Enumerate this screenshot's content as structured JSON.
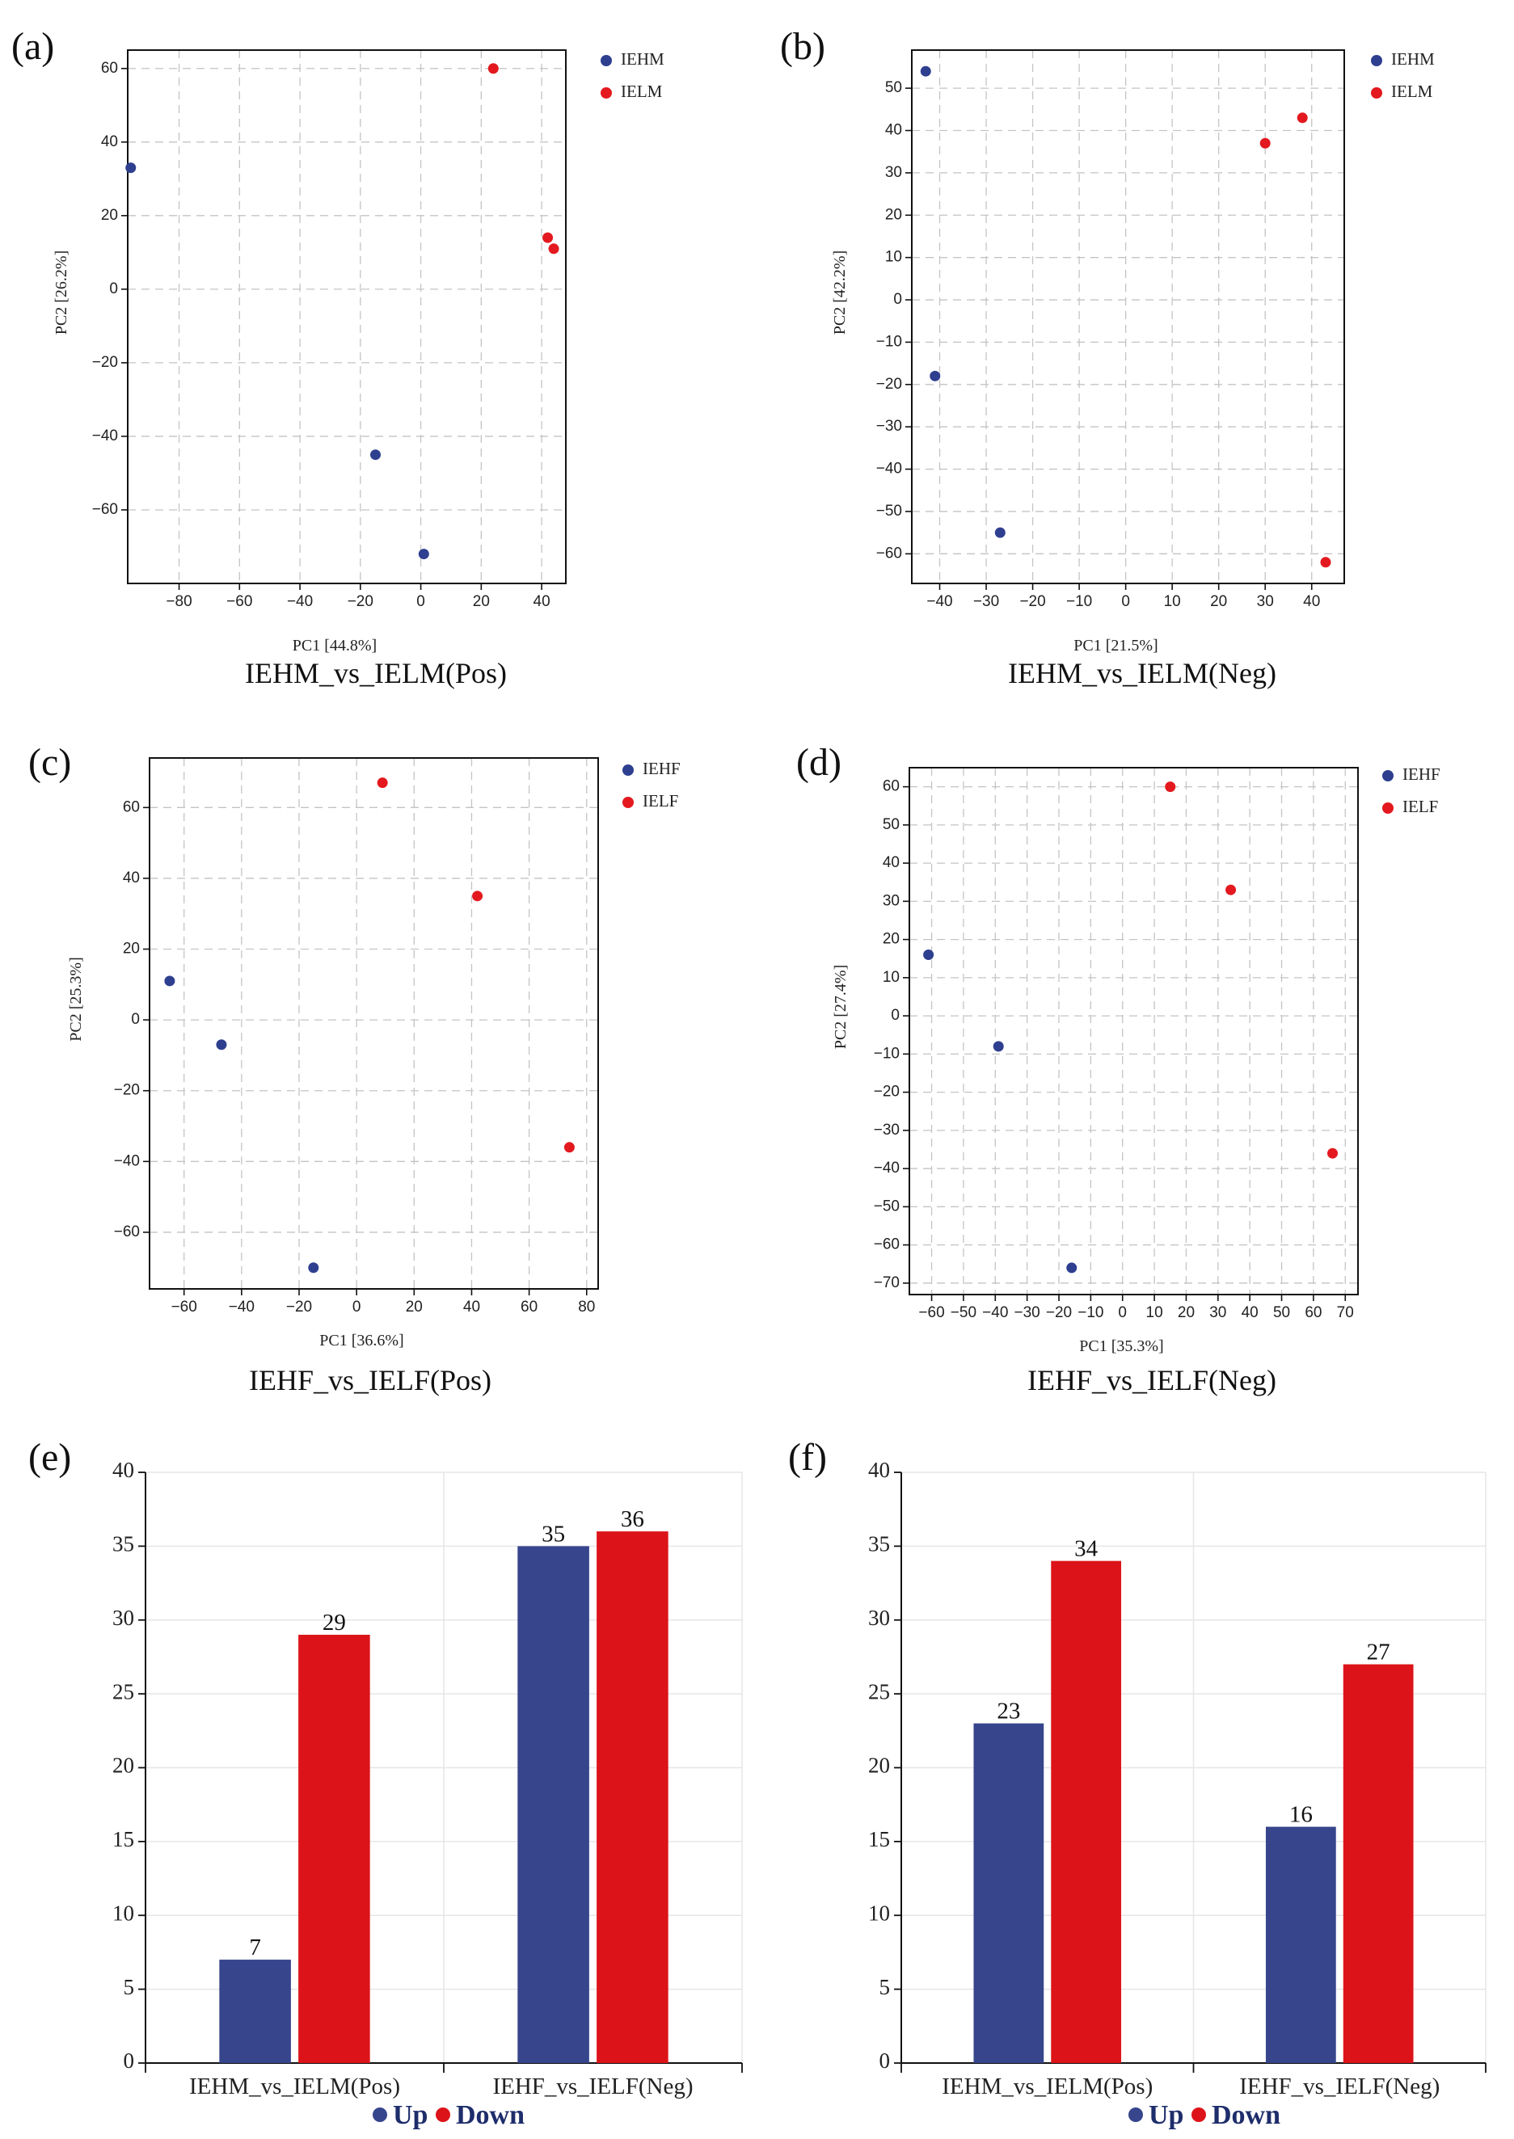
{
  "colors": {
    "IEH": "#2e3f8f",
    "IEL": "#e3191f",
    "up": "#37458c",
    "down": "#dc1419"
  },
  "chart_data": [
    {
      "panel": "(a)",
      "type": "scatter",
      "caption": "IEHM_vs_IELM(Pos)",
      "xlabel": "PC1 [44.8%]",
      "ylabel": "PC2 [26.2%]",
      "xlim": [
        -97,
        48
      ],
      "ylim": [
        -80,
        65
      ],
      "xticks": [
        -80,
        -60,
        -40,
        -20,
        0,
        20,
        40
      ],
      "yticks": [
        -60,
        -40,
        -20,
        0,
        20,
        40,
        60
      ],
      "series": [
        {
          "name": "IEHM",
          "color": "#2e3f8f",
          "points": [
            [
              -96,
              33
            ],
            [
              -15,
              -45
            ],
            [
              1,
              -72
            ]
          ]
        },
        {
          "name": "IELM",
          "color": "#e3191f",
          "points": [
            [
              24,
              60
            ],
            [
              42,
              14
            ],
            [
              44,
              11
            ]
          ]
        }
      ]
    },
    {
      "panel": "(b)",
      "type": "scatter",
      "caption": "IEHM_vs_IELM(Neg)",
      "xlabel": "PC1 [21.5%]",
      "ylabel": "PC2 [42.2%]",
      "xlim": [
        -46,
        47
      ],
      "ylim": [
        -67,
        59
      ],
      "xticks": [
        -40,
        -30,
        -20,
        -10,
        0,
        10,
        20,
        30,
        40
      ],
      "yticks": [
        -60,
        -50,
        -40,
        -30,
        -20,
        -10,
        0,
        10,
        20,
        30,
        40,
        50
      ],
      "series": [
        {
          "name": "IEHM",
          "color": "#2e3f8f",
          "points": [
            [
              -43,
              54
            ],
            [
              -41,
              -18
            ],
            [
              -27,
              -55
            ]
          ]
        },
        {
          "name": "IELM",
          "color": "#e3191f",
          "points": [
            [
              30,
              37
            ],
            [
              38,
              43
            ],
            [
              43,
              -62
            ]
          ]
        }
      ]
    },
    {
      "panel": "(c)",
      "type": "scatter",
      "caption": "IEHF_vs_IELF(Pos)",
      "xlabel": "PC1 [36.6%]",
      "ylabel": "PC2 [25.3%]",
      "xlim": [
        -72,
        84
      ],
      "ylim": [
        -76,
        74
      ],
      "xticks": [
        -60,
        -40,
        -20,
        0,
        20,
        40,
        60,
        80
      ],
      "yticks": [
        -60,
        -40,
        -20,
        0,
        20,
        40,
        60
      ],
      "series": [
        {
          "name": "IEHF",
          "color": "#2e3f8f",
          "points": [
            [
              -65,
              11
            ],
            [
              -47,
              -7
            ],
            [
              -15,
              -70
            ]
          ]
        },
        {
          "name": "IELF",
          "color": "#e3191f",
          "points": [
            [
              9,
              67
            ],
            [
              42,
              35
            ],
            [
              74,
              -36
            ]
          ]
        }
      ]
    },
    {
      "panel": "(d)",
      "type": "scatter",
      "caption": "IEHF_vs_IELF(Neg)",
      "xlabel": "PC1 [35.3%]",
      "ylabel": "PC2 [27.4%]",
      "xlim": [
        -67,
        74
      ],
      "ylim": [
        -73,
        65
      ],
      "xticks": [
        -60,
        -50,
        -40,
        -30,
        -20,
        -10,
        0,
        10,
        20,
        30,
        40,
        50,
        60,
        70
      ],
      "yticks": [
        -70,
        -60,
        -50,
        -40,
        -30,
        -20,
        -10,
        0,
        10,
        20,
        30,
        40,
        50,
        60
      ],
      "series": [
        {
          "name": "IEHF",
          "color": "#2e3f8f",
          "points": [
            [
              -61,
              16
            ],
            [
              -39,
              -8
            ],
            [
              -16,
              -66
            ]
          ]
        },
        {
          "name": "IELF",
          "color": "#e3191f",
          "points": [
            [
              15,
              60
            ],
            [
              34,
              33
            ],
            [
              66,
              -36
            ]
          ]
        }
      ]
    },
    {
      "panel": "(e)",
      "type": "bar",
      "categories": [
        "IEHM_vs_IELM(Pos)",
        "IEHF_vs_IELF(Neg)"
      ],
      "ylim": [
        0,
        40
      ],
      "yticks": [
        0,
        5,
        10,
        15,
        20,
        25,
        30,
        35,
        40
      ],
      "series": [
        {
          "name": "Up",
          "color": "#37458c",
          "values": [
            7,
            35
          ]
        },
        {
          "name": "Down",
          "color": "#dc1419",
          "values": [
            29,
            36
          ]
        }
      ]
    },
    {
      "panel": "(f)",
      "type": "bar",
      "categories": [
        "IEHM_vs_IELM(Pos)",
        "IEHF_vs_IELF(Neg)"
      ],
      "ylim": [
        0,
        40
      ],
      "yticks": [
        0,
        5,
        10,
        15,
        20,
        25,
        30,
        35,
        40
      ],
      "series": [
        {
          "name": "Up",
          "color": "#37458c",
          "values": [
            23,
            16
          ]
        },
        {
          "name": "Down",
          "color": "#dc1419",
          "values": [
            34,
            27
          ]
        }
      ]
    }
  ]
}
